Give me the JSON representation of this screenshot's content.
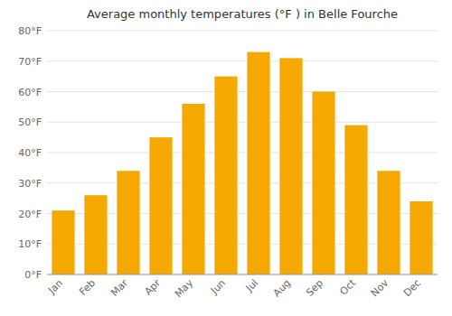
{
  "chart_data": {
    "type": "bar",
    "title": "Average monthly temperatures (°F ) in Belle Fourche",
    "categories": [
      "Jan",
      "Feb",
      "Mar",
      "Apr",
      "May",
      "Jun",
      "Jul",
      "Aug",
      "Sep",
      "Oct",
      "Nov",
      "Dec"
    ],
    "values": [
      21,
      26,
      34,
      45,
      56,
      65,
      73,
      71,
      60,
      49,
      34,
      24
    ],
    "color": "#F5A800",
    "ylim": [
      0,
      80
    ],
    "yticks": [
      {
        "value": 0,
        "label": "0°F"
      },
      {
        "value": 10,
        "label": "10°F"
      },
      {
        "value": 20,
        "label": "20°F"
      },
      {
        "value": 30,
        "label": "30°F"
      },
      {
        "value": 40,
        "label": "40°F"
      },
      {
        "value": 50,
        "label": "50°F"
      },
      {
        "value": 60,
        "label": "60°F"
      },
      {
        "value": 70,
        "label": "70°F"
      },
      {
        "value": 80,
        "label": "80°F"
      }
    ],
    "grid": true
  }
}
